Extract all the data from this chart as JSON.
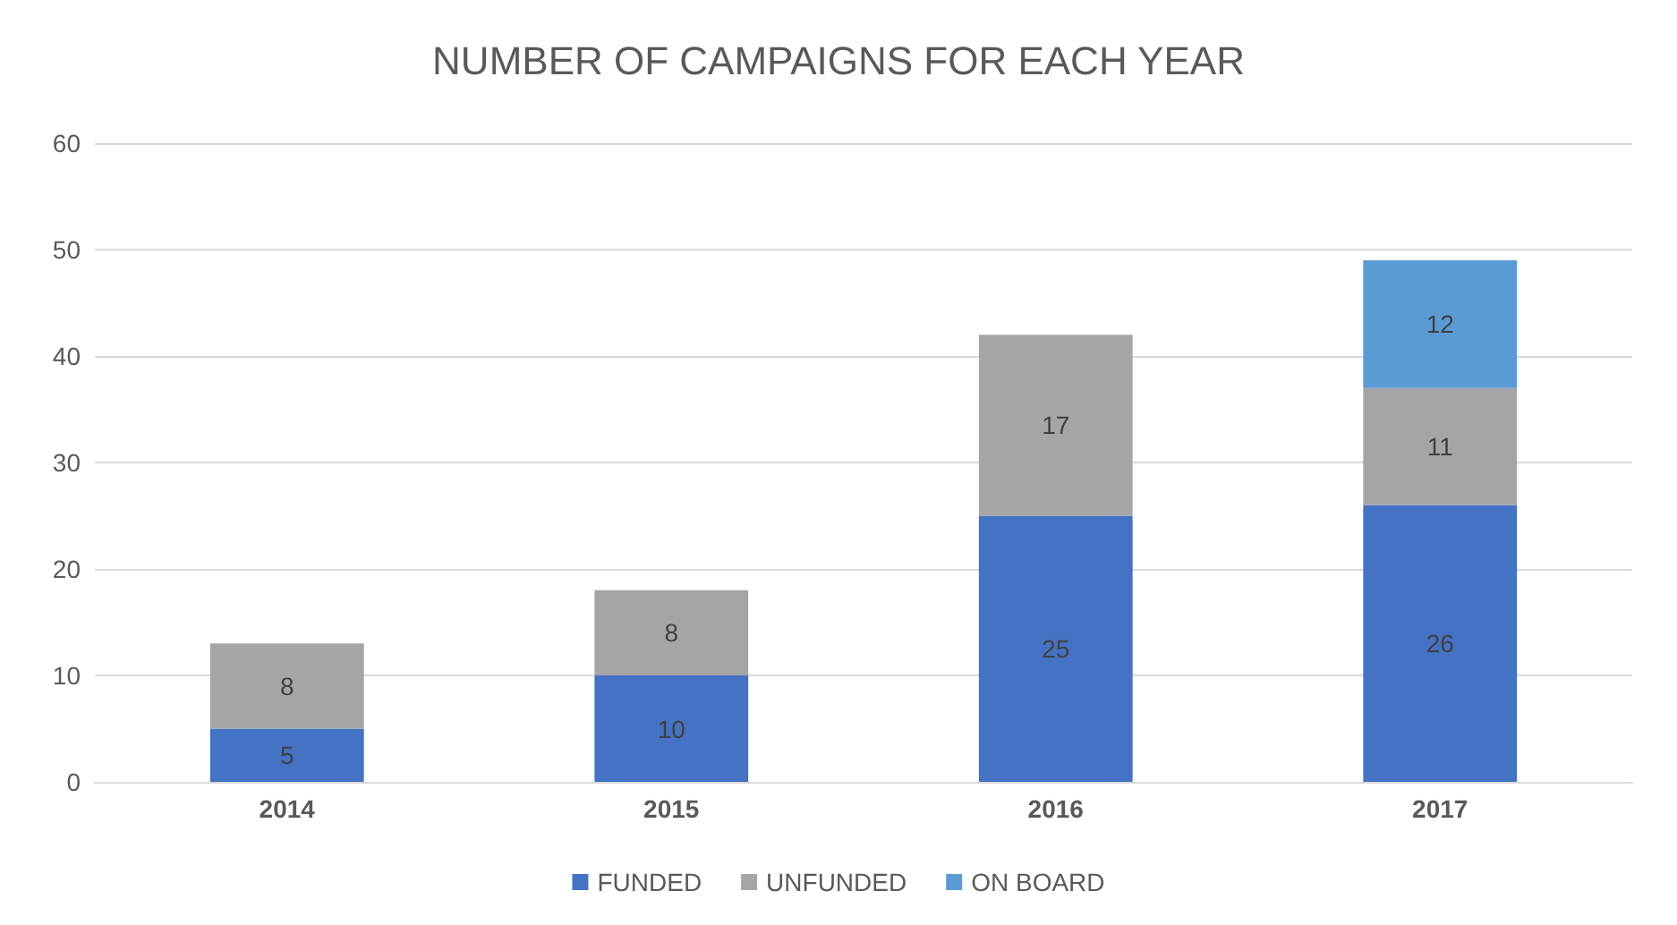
{
  "chart_data": {
    "type": "bar",
    "title": "NUMBER OF CAMPAIGNS FOR EACH YEAR",
    "categories": [
      "2014",
      "2015",
      "2016",
      "2017"
    ],
    "stacked": true,
    "series": [
      {
        "name": "FUNDED",
        "color": "#4472c4",
        "values": [
          5,
          10,
          25,
          26
        ]
      },
      {
        "name": "UNFUNDED",
        "color": "#a5a5a5",
        "values": [
          8,
          8,
          17,
          11
        ]
      },
      {
        "name": "ON BOARD",
        "color": "#5b9bd5",
        "values": [
          null,
          null,
          null,
          12
        ]
      }
    ],
    "ylim": [
      0,
      60
    ],
    "yticks": [
      0,
      10,
      20,
      30,
      40,
      50,
      60
    ],
    "grid": "y",
    "legend": "bottom",
    "data_labels": true
  }
}
